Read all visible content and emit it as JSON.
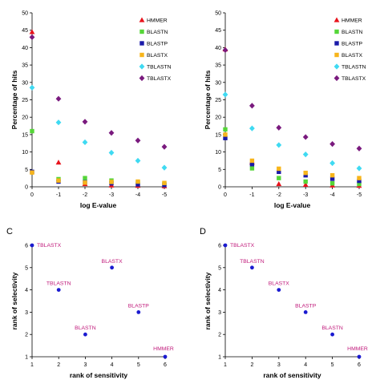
{
  "chart_data": [
    {
      "panel": "A",
      "panel_label": "",
      "type": "scatter",
      "xlabel": "log E-value",
      "ylabel": "Percentage of hits",
      "xticks": [
        "0",
        "-1",
        "-2",
        "-3",
        "-4",
        "-5"
      ],
      "yticks": [
        "0",
        "5",
        "10",
        "15",
        "20",
        "25",
        "30",
        "35",
        "40",
        "45",
        "50"
      ],
      "x": [
        0,
        -1,
        -2,
        -3,
        -4,
        -5
      ],
      "xlim": [
        0,
        -5
      ],
      "ylim": [
        0,
        50
      ],
      "grid": false,
      "legend_position": "top-right",
      "series": [
        {
          "name": "HMMER",
          "color": "#e8131c",
          "marker": "triangle",
          "values": [
            44.5,
            7,
            0.8,
            0.4,
            0.3,
            0.2
          ]
        },
        {
          "name": "BLASTN",
          "color": "#55d638",
          "marker": "square",
          "values": [
            16,
            2.2,
            2.5,
            1.8,
            1.2,
            0.8
          ]
        },
        {
          "name": "BLASTP",
          "color": "#1a1aa8",
          "marker": "square",
          "values": [
            4.3,
            1.5,
            1.3,
            1.0,
            0.7,
            0.5
          ]
        },
        {
          "name": "BLASTX",
          "color": "#f7b51b",
          "marker": "square",
          "values": [
            4.1,
            1.8,
            1.2,
            1.4,
            1.5,
            1.1
          ]
        },
        {
          "name": "TBLASTN",
          "color": "#3fdaf2",
          "marker": "diamond",
          "values": [
            28.5,
            18.5,
            12.8,
            9.8,
            7.5,
            5.5
          ]
        },
        {
          "name": "TBLASTX",
          "color": "#7a1a7e",
          "marker": "diamond",
          "values": [
            43,
            25.3,
            18.7,
            15.5,
            13.3,
            11.5
          ]
        }
      ]
    },
    {
      "panel": "B",
      "panel_label": "",
      "type": "scatter",
      "xlabel": "log E-value",
      "ylabel": "Percentage of hits",
      "xticks": [
        "0",
        "-1",
        "-2",
        "-3",
        "-4",
        "-5"
      ],
      "yticks": [
        "0",
        "5",
        "10",
        "15",
        "20",
        "25",
        "30",
        "35",
        "40",
        "45",
        "50"
      ],
      "x": [
        0,
        -1,
        -2,
        -3,
        -4,
        -5
      ],
      "xlim": [
        0,
        -5
      ],
      "ylim": [
        0,
        50
      ],
      "grid": false,
      "legend_position": "top-right",
      "series": [
        {
          "name": "HMMER",
          "color": "#e8131c",
          "marker": "triangle",
          "values": [
            39.5,
            7,
            0.8,
            0.6,
            0.4,
            0.3
          ]
        },
        {
          "name": "BLASTN",
          "color": "#55d638",
          "marker": "square",
          "values": [
            16.5,
            5.3,
            2.5,
            1.5,
            1.0,
            0.8
          ]
        },
        {
          "name": "BLASTP",
          "color": "#1a1aa8",
          "marker": "square",
          "values": [
            14,
            6.5,
            4.3,
            3.3,
            2.3,
            1.7
          ]
        },
        {
          "name": "BLASTX",
          "color": "#f7b51b",
          "marker": "square",
          "values": [
            15,
            7.5,
            5.2,
            4.0,
            3.3,
            2.5
          ]
        },
        {
          "name": "TBLASTN",
          "color": "#3fdaf2",
          "marker": "diamond",
          "values": [
            26.5,
            16.8,
            12.0,
            9.3,
            6.8,
            5.3
          ]
        },
        {
          "name": "TBLASTX",
          "color": "#7a1a7e",
          "marker": "diamond",
          "values": [
            39.3,
            23.3,
            17.0,
            14.3,
            12.3,
            11.0
          ]
        }
      ]
    },
    {
      "panel": "C",
      "panel_label": "C",
      "type": "scatter",
      "xlabel": "rank of sensitivity",
      "ylabel": "rank of selectivity",
      "xticks": [
        "1",
        "2",
        "3",
        "4",
        "5",
        "6"
      ],
      "yticks": [
        "1",
        "2",
        "3",
        "4",
        "5",
        "6"
      ],
      "xlim": [
        1,
        6
      ],
      "ylim": [
        1,
        6
      ],
      "grid": false,
      "point_color": "#1a1ad0",
      "label_color": "#c0187a",
      "points": [
        {
          "label": "TBLASTX",
          "x": 1,
          "y": 6
        },
        {
          "label": "TBLASTN",
          "x": 2,
          "y": 4
        },
        {
          "label": "BLASTX",
          "x": 4,
          "y": 5
        },
        {
          "label": "BLASTP",
          "x": 5,
          "y": 3
        },
        {
          "label": "BLASTN",
          "x": 3,
          "y": 2
        },
        {
          "label": "HMMER",
          "x": 6,
          "y": 1
        }
      ]
    },
    {
      "panel": "D",
      "panel_label": "D",
      "type": "scatter",
      "xlabel": "rank of sensitivity",
      "ylabel": "rank of selectivity",
      "xticks": [
        "1",
        "2",
        "3",
        "4",
        "5",
        "6"
      ],
      "yticks": [
        "1",
        "2",
        "3",
        "4",
        "5",
        "6"
      ],
      "xlim": [
        1,
        6
      ],
      "ylim": [
        1,
        6
      ],
      "grid": false,
      "point_color": "#1a1ad0",
      "label_color": "#c0187a",
      "points": [
        {
          "label": "TBLASTX",
          "x": 1,
          "y": 6
        },
        {
          "label": "TBLASTN",
          "x": 2,
          "y": 5
        },
        {
          "label": "BLASTX",
          "x": 3,
          "y": 4
        },
        {
          "label": "BLASTP",
          "x": 4,
          "y": 3
        },
        {
          "label": "BLASTN",
          "x": 5,
          "y": 2
        },
        {
          "label": "HMMER",
          "x": 6,
          "y": 1
        }
      ]
    }
  ]
}
